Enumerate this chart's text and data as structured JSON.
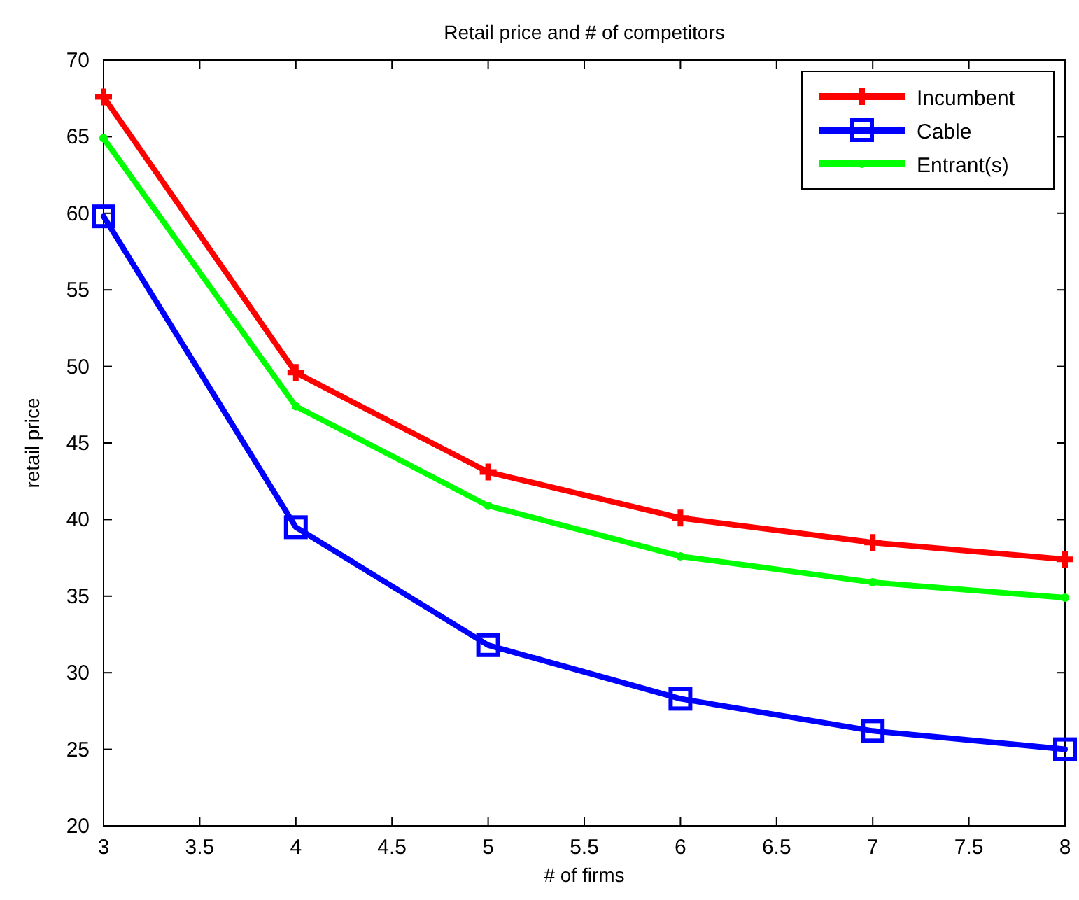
{
  "chart_data": {
    "type": "line",
    "title": "Retail price and # of competitors",
    "xlabel": "# of firms",
    "ylabel": "retail price",
    "x": [
      3,
      4,
      5,
      6,
      7,
      8
    ],
    "series": [
      {
        "name": "Incumbent",
        "color": "#ff0000",
        "marker": "cross",
        "values": [
          67.6,
          49.6,
          43.1,
          40.1,
          38.5,
          37.4
        ]
      },
      {
        "name": "Cable",
        "color": "#0000ff",
        "marker": "square",
        "values": [
          59.8,
          39.5,
          31.8,
          28.3,
          26.2,
          25.0
        ]
      },
      {
        "name": "Entrant(s)",
        "color": "#00ff00",
        "marker": "circle",
        "values": [
          64.9,
          47.4,
          40.9,
          37.6,
          35.9,
          34.9
        ]
      }
    ],
    "xlim": [
      3,
      8
    ],
    "xticks": [
      3,
      3.5,
      4,
      4.5,
      5,
      5.5,
      6,
      6.5,
      7,
      7.5,
      8
    ],
    "ylim": [
      20,
      70
    ],
    "yticks": [
      20,
      25,
      30,
      35,
      40,
      45,
      50,
      55,
      60,
      65,
      70
    ],
    "grid": false,
    "legend": "top right",
    "line_style": "solid"
  }
}
